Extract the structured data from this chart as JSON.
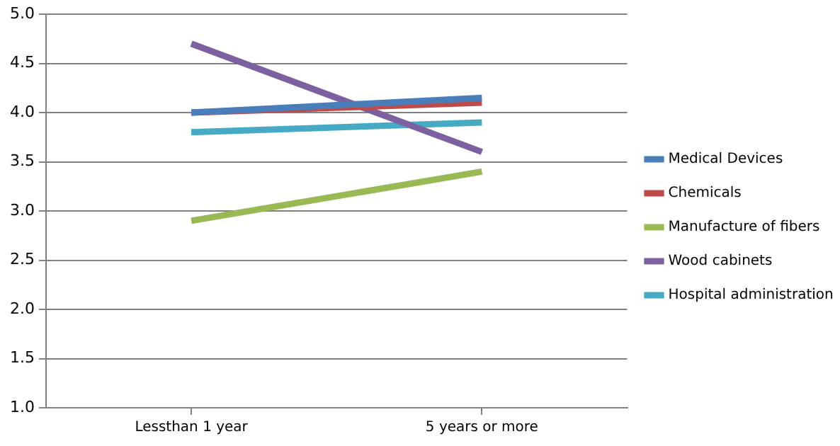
{
  "chart_data": {
    "type": "line",
    "categories": [
      "Lessthan 1 year",
      "5 years or more"
    ],
    "series": [
      {
        "name": "Medical Devices",
        "color": "#4a7ebb",
        "values": [
          4.0,
          4.15
        ]
      },
      {
        "name": "Chemicals",
        "color": "#be4b48",
        "values": [
          4.0,
          4.1
        ]
      },
      {
        "name": "Manufacture of fibers",
        "color": "#98b954",
        "values": [
          2.9,
          3.4
        ]
      },
      {
        "name": "Wood cabinets",
        "color": "#7d60a0",
        "values": [
          4.7,
          3.6
        ]
      },
      {
        "name": "Hospital administration",
        "color": "#46aac5",
        "values": [
          3.8,
          3.9
        ]
      }
    ],
    "ylim": [
      1,
      5
    ],
    "yticks": [
      {
        "value": 1,
        "label": "1.0"
      },
      {
        "value": 1.5,
        "label": "1.5"
      },
      {
        "value": 2,
        "label": "2.0"
      },
      {
        "value": 2.5,
        "label": "2.5"
      },
      {
        "value": 3,
        "label": "3.0"
      },
      {
        "value": 3.5,
        "label": "3.5"
      },
      {
        "value": 4,
        "label": "4.0"
      },
      {
        "value": 4.5,
        "label": "4.5"
      },
      {
        "value": 5,
        "label": "5.0"
      }
    ],
    "grid": "y",
    "legend": "right",
    "marker": "none",
    "line_style": "solid"
  }
}
